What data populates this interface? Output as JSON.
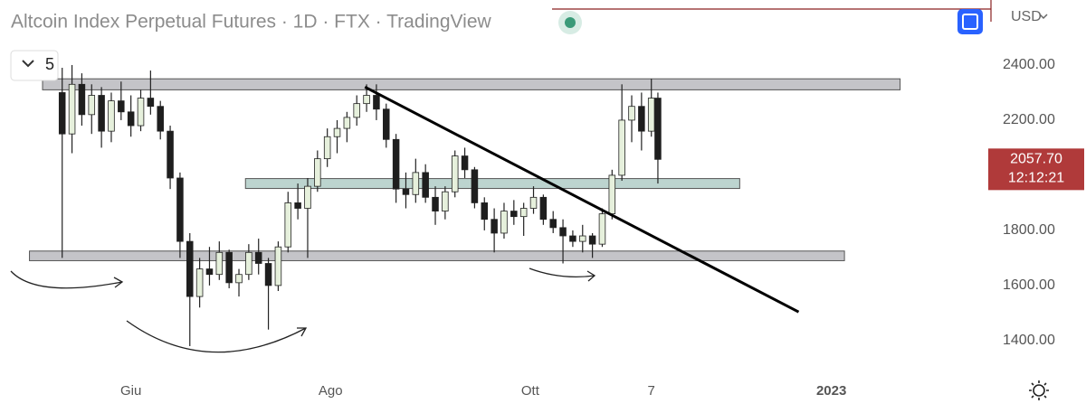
{
  "chart_data": {
    "type": "candlestick",
    "title": "Altcoin Index Perpetual Futures · 1D · FTX · TradingView",
    "currency": "USD",
    "interval_selector": "5",
    "x": [
      -21,
      -18,
      -15,
      -12,
      -9,
      -6,
      -3,
      0,
      3,
      6,
      9,
      12,
      15,
      18,
      21,
      24,
      27,
      30,
      33,
      36,
      39,
      42,
      45,
      48,
      51,
      54,
      57,
      60,
      63,
      66,
      69,
      72,
      75,
      78,
      81,
      84,
      87,
      90,
      93,
      96,
      99,
      102,
      105,
      108,
      111,
      114,
      117,
      120,
      123,
      126,
      129,
      132,
      135,
      138,
      141,
      144,
      147,
      150,
      153,
      156,
      159,
      161
    ],
    "open": [
      2300,
      2150,
      2330,
      2220,
      2290,
      2160,
      2270,
      2230,
      2180,
      2280,
      2250,
      2160,
      1990,
      1760,
      1560,
      1660,
      1640,
      1720,
      1610,
      1640,
      1720,
      1680,
      1600,
      1740,
      1900,
      1880,
      1960,
      2060,
      2140,
      2170,
      2210,
      2260,
      2290,
      2240,
      2130,
      1950,
      1930,
      2010,
      1920,
      1870,
      1940,
      2070,
      2020,
      1900,
      1840,
      1790,
      1870,
      1850,
      1880,
      1920,
      1840,
      1810,
      1780,
      1760,
      1780,
      1750,
      1860,
      2000,
      2200,
      2250,
      2160,
      2280
    ],
    "high": [
      2390,
      2400,
      2370,
      2330,
      2320,
      2300,
      2340,
      2290,
      2310,
      2380,
      2270,
      2180,
      2010,
      1790,
      1700,
      1740,
      1760,
      1730,
      1660,
      1750,
      1770,
      1700,
      1760,
      1940,
      1970,
      1990,
      2090,
      2170,
      2200,
      2230,
      2290,
      2330,
      2330,
      2260,
      2150,
      2010,
      2060,
      2040,
      1960,
      1960,
      2090,
      2100,
      2030,
      1920,
      1880,
      1900,
      1910,
      1900,
      1960,
      1930,
      1870,
      1840,
      1800,
      1820,
      1790,
      1880,
      2020,
      2330,
      2290,
      2300,
      2350,
      2300
    ],
    "low": [
      1700,
      2080,
      2180,
      2150,
      2100,
      2120,
      2200,
      2140,
      2160,
      2220,
      2130,
      1950,
      1700,
      1380,
      1520,
      1600,
      1620,
      1590,
      1560,
      1620,
      1640,
      1440,
      1580,
      1720,
      1840,
      1700,
      1940,
      2030,
      2080,
      2120,
      2180,
      2230,
      2200,
      2100,
      1900,
      1880,
      1900,
      1900,
      1820,
      1840,
      1920,
      1990,
      1880,
      1800,
      1720,
      1770,
      1820,
      1780,
      1860,
      1820,
      1790,
      1680,
      1740,
      1720,
      1700,
      1740,
      1840,
      1980,
      2120,
      2090,
      2140,
      1970
    ],
    "close": [
      2150,
      2330,
      2220,
      2290,
      2160,
      2270,
      2230,
      2180,
      2280,
      2250,
      2160,
      1990,
      1760,
      1560,
      1660,
      1640,
      1720,
      1610,
      1640,
      1720,
      1680,
      1600,
      1740,
      1900,
      1880,
      1960,
      2060,
      2140,
      2170,
      2210,
      2260,
      2290,
      2240,
      2130,
      1950,
      1930,
      2010,
      1920,
      1870,
      1940,
      2070,
      2020,
      1900,
      1840,
      1790,
      1870,
      1850,
      1880,
      1920,
      1840,
      1810,
      1780,
      1760,
      1780,
      1750,
      1860,
      2000,
      2200,
      2250,
      2160,
      2280,
      2057.7
    ],
    "up_color": "#e6f0dc",
    "down_color": "#1e1e1e",
    "xlim": [
      -40,
      260
    ],
    "ylim": [
      1275,
      2636
    ],
    "xticks": [
      {
        "value": 0,
        "label": "Giu"
      },
      {
        "value": 61,
        "label": "Ago"
      },
      {
        "value": 122,
        "label": "Ott"
      },
      {
        "value": 159,
        "label": "7"
      },
      {
        "value": 214,
        "label": "2023"
      }
    ],
    "yticks": [
      {
        "value": 1400,
        "label": "1400.00"
      },
      {
        "value": 1600,
        "label": "1600.00"
      },
      {
        "value": 1800,
        "label": "1800.00"
      },
      {
        "value": 2000,
        "label": "2000.00"
      },
      {
        "value": 2200,
        "label": "2200.00"
      },
      {
        "value": 2400,
        "label": "2400.00"
      }
    ],
    "zones": [
      {
        "xlim": [
          -27,
          235
        ],
        "ylim": [
          2310,
          2350
        ],
        "color": "#c4c4c8"
      },
      {
        "xlim": [
          35,
          186
        ],
        "ylim": [
          1952,
          1988
        ],
        "color": "#bcd4cf"
      },
      {
        "xlim": [
          -31,
          218
        ],
        "ylim": [
          1690,
          1725
        ],
        "color": "#c4c4c8"
      }
    ],
    "trendline": {
      "x": [
        71.5,
        204
      ],
      "y": [
        2320,
        1504
      ]
    },
    "price_tag": {
      "value": 2057.7,
      "label": "2057.70"
    },
    "countdown": "12:12:21",
    "price_tag_color": "#b03a3a"
  }
}
